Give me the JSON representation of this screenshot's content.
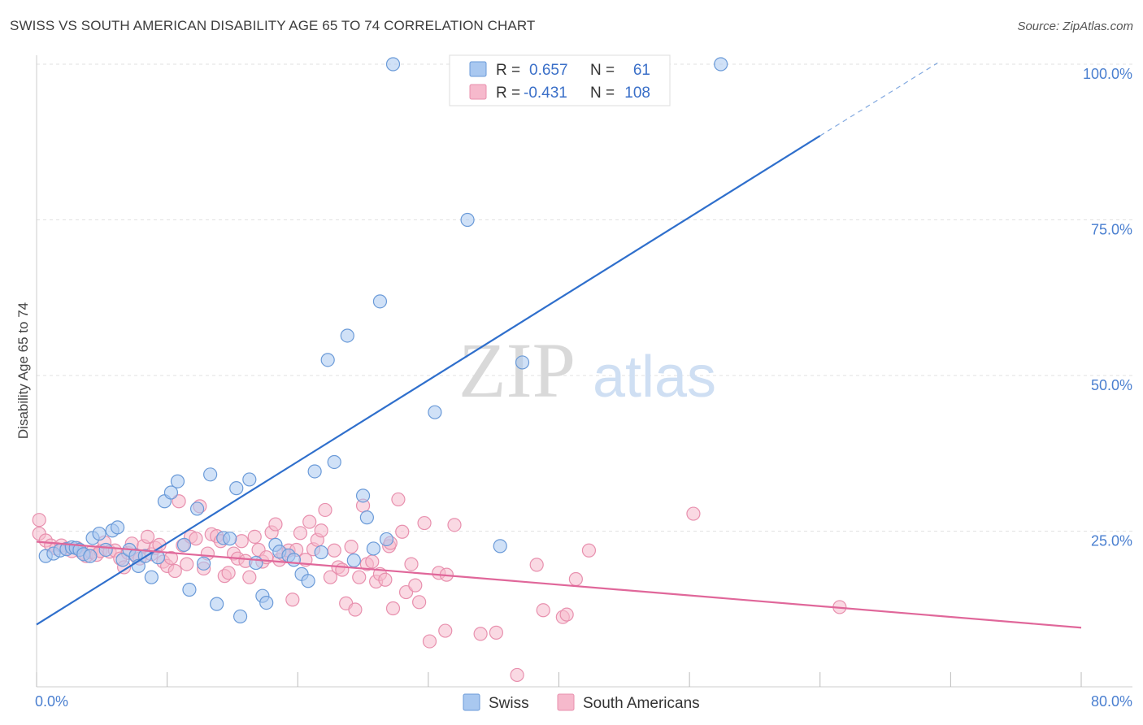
{
  "title": "SWISS VS SOUTH AMERICAN DISABILITY AGE 65 TO 74 CORRELATION CHART",
  "source": "Source: ZipAtlas.com",
  "colors": {
    "swiss_fill": "#a9c8f0",
    "swiss_stroke": "#6a9ad8",
    "swiss_line": "#2f6fcc",
    "sa_fill": "#f6b9cc",
    "sa_stroke": "#e890ae",
    "sa_line": "#e0679a",
    "axis_label": "#4a7fd0",
    "grid": "#e2e2e2"
  },
  "legend": {
    "rows": [
      {
        "r_label": "R =",
        "r_value": "0.657",
        "n_label": "N =",
        "n_value": "61",
        "series": "swiss"
      },
      {
        "r_label": "R =",
        "r_value": "-0.431",
        "n_label": "N =",
        "n_value": "108",
        "series": "sa"
      }
    ]
  },
  "bottom_legend": [
    "Swiss",
    "South Americans"
  ],
  "watermark": {
    "zip": "ZIP",
    "atlas": "atlas"
  },
  "chart_data": {
    "type": "scatter",
    "title": "SWISS VS SOUTH AMERICAN DISABILITY AGE 65 TO 74 CORRELATION CHART",
    "xlabel": "",
    "ylabel": "Disability Age 65 to 74",
    "xlim": [
      0,
      80
    ],
    "ylim": [
      0,
      100
    ],
    "x_tick_labels": [
      "0.0%",
      "80.0%"
    ],
    "y_ticks": [
      25,
      50,
      75,
      100
    ],
    "y_tick_labels": [
      "25.0%",
      "50.0%",
      "75.0%",
      "100.0%"
    ],
    "grid": true,
    "legend_position": "top-center",
    "series": [
      {
        "name": "Swiss",
        "key": "swiss",
        "trend": {
          "x0": 0,
          "y0": 10.0,
          "x1": 60,
          "y1": 88.5,
          "dash_to_x": 69,
          "dash_to_y": 100.2
        },
        "points": [
          [
            0.7,
            21.0
          ],
          [
            1.3,
            21.4
          ],
          [
            1.8,
            21.9
          ],
          [
            2.3,
            22.1
          ],
          [
            2.7,
            22.4
          ],
          [
            3.0,
            22.3
          ],
          [
            3.3,
            22.0
          ],
          [
            3.6,
            21.3
          ],
          [
            4.1,
            21.0
          ],
          [
            4.3,
            23.9
          ],
          [
            4.8,
            24.6
          ],
          [
            5.3,
            22.0
          ],
          [
            5.8,
            25.1
          ],
          [
            6.2,
            25.6
          ],
          [
            6.6,
            20.4
          ],
          [
            7.1,
            22.0
          ],
          [
            7.6,
            21.1
          ],
          [
            7.8,
            19.4
          ],
          [
            8.3,
            21.0
          ],
          [
            8.8,
            17.6
          ],
          [
            9.3,
            20.8
          ],
          [
            9.8,
            29.8
          ],
          [
            10.3,
            31.2
          ],
          [
            10.8,
            33.0
          ],
          [
            11.3,
            22.8
          ],
          [
            11.7,
            15.6
          ],
          [
            12.3,
            28.6
          ],
          [
            12.8,
            19.8
          ],
          [
            13.3,
            34.1
          ],
          [
            13.8,
            13.3
          ],
          [
            14.3,
            23.9
          ],
          [
            14.8,
            23.8
          ],
          [
            15.3,
            31.9
          ],
          [
            15.6,
            11.3
          ],
          [
            16.3,
            33.3
          ],
          [
            16.8,
            19.9
          ],
          [
            17.3,
            14.6
          ],
          [
            17.6,
            13.5
          ],
          [
            18.3,
            22.8
          ],
          [
            18.6,
            21.7
          ],
          [
            19.3,
            21.1
          ],
          [
            19.7,
            20.4
          ],
          [
            20.3,
            18.1
          ],
          [
            20.8,
            17.0
          ],
          [
            21.3,
            34.6
          ],
          [
            21.8,
            21.6
          ],
          [
            22.3,
            52.5
          ],
          [
            22.8,
            36.1
          ],
          [
            23.8,
            56.4
          ],
          [
            24.3,
            20.3
          ],
          [
            25.0,
            30.7
          ],
          [
            25.3,
            27.2
          ],
          [
            25.8,
            22.2
          ],
          [
            26.3,
            61.9
          ],
          [
            26.8,
            23.7
          ],
          [
            27.3,
            100.0
          ],
          [
            30.5,
            44.1
          ],
          [
            33.0,
            75.0
          ],
          [
            35.5,
            22.6
          ],
          [
            37.2,
            52.1
          ],
          [
            52.4,
            100.0
          ]
        ]
      },
      {
        "name": "South Americans",
        "key": "sa",
        "trend": {
          "x0": 0,
          "y0": 23.3,
          "x1": 80,
          "y1": 9.5
        },
        "points": [
          [
            0.2,
            26.8
          ],
          [
            0.2,
            24.6
          ],
          [
            0.7,
            23.5
          ],
          [
            1.1,
            22.7
          ],
          [
            1.5,
            22.2
          ],
          [
            1.9,
            22.7
          ],
          [
            2.3,
            22.2
          ],
          [
            2.7,
            21.8
          ],
          [
            3.1,
            22.3
          ],
          [
            3.5,
            21.5
          ],
          [
            3.8,
            21.0
          ],
          [
            4.2,
            21.6
          ],
          [
            4.6,
            21.2
          ],
          [
            4.9,
            21.8
          ],
          [
            5.2,
            23.2
          ],
          [
            5.6,
            21.7
          ],
          [
            6.0,
            21.9
          ],
          [
            6.4,
            20.6
          ],
          [
            6.7,
            19.2
          ],
          [
            7.0,
            21.5
          ],
          [
            7.3,
            23.0
          ],
          [
            7.6,
            21.0
          ],
          [
            7.9,
            20.6
          ],
          [
            8.2,
            22.6
          ],
          [
            8.5,
            24.1
          ],
          [
            8.8,
            21.3
          ],
          [
            9.1,
            22.3
          ],
          [
            9.4,
            22.8
          ],
          [
            9.7,
            20.1
          ],
          [
            10.0,
            19.4
          ],
          [
            10.3,
            20.7
          ],
          [
            10.6,
            18.6
          ],
          [
            10.9,
            29.8
          ],
          [
            11.2,
            22.7
          ],
          [
            11.5,
            19.7
          ],
          [
            11.8,
            24.1
          ],
          [
            12.2,
            23.8
          ],
          [
            12.5,
            29.0
          ],
          [
            12.8,
            19.0
          ],
          [
            13.1,
            21.4
          ],
          [
            13.4,
            24.5
          ],
          [
            13.8,
            24.2
          ],
          [
            14.1,
            23.4
          ],
          [
            14.4,
            17.8
          ],
          [
            14.7,
            18.3
          ],
          [
            15.1,
            21.4
          ],
          [
            15.4,
            20.6
          ],
          [
            15.7,
            23.4
          ],
          [
            16.0,
            20.2
          ],
          [
            16.3,
            17.6
          ],
          [
            16.7,
            24.1
          ],
          [
            17.0,
            22.0
          ],
          [
            17.3,
            20.1
          ],
          [
            17.6,
            20.8
          ],
          [
            18.0,
            24.8
          ],
          [
            18.3,
            26.1
          ],
          [
            18.6,
            20.4
          ],
          [
            18.9,
            21.3
          ],
          [
            19.3,
            21.9
          ],
          [
            19.6,
            14.0
          ],
          [
            19.9,
            22.0
          ],
          [
            20.2,
            24.7
          ],
          [
            20.6,
            20.4
          ],
          [
            20.9,
            26.5
          ],
          [
            21.2,
            22.1
          ],
          [
            21.5,
            23.6
          ],
          [
            21.8,
            25.1
          ],
          [
            22.1,
            28.4
          ],
          [
            22.5,
            17.6
          ],
          [
            22.8,
            21.9
          ],
          [
            23.1,
            19.2
          ],
          [
            23.4,
            18.8
          ],
          [
            23.7,
            13.4
          ],
          [
            24.1,
            22.5
          ],
          [
            24.4,
            12.4
          ],
          [
            24.7,
            17.6
          ],
          [
            25.0,
            29.1
          ],
          [
            25.3,
            19.7
          ],
          [
            25.7,
            20.1
          ],
          [
            26.0,
            16.9
          ],
          [
            26.3,
            18.1
          ],
          [
            26.7,
            17.2
          ],
          [
            27.0,
            22.6
          ],
          [
            27.3,
            12.6
          ],
          [
            27.7,
            30.1
          ],
          [
            28.0,
            24.9
          ],
          [
            28.3,
            15.2
          ],
          [
            28.7,
            19.7
          ],
          [
            29.0,
            16.3
          ],
          [
            29.3,
            13.6
          ],
          [
            29.7,
            26.3
          ],
          [
            30.1,
            7.3
          ],
          [
            30.8,
            18.3
          ],
          [
            31.3,
            9.0
          ],
          [
            32.0,
            26.0
          ],
          [
            31.4,
            18.0
          ],
          [
            34.0,
            8.5
          ],
          [
            35.2,
            8.7
          ],
          [
            36.8,
            1.9
          ],
          [
            38.3,
            19.6
          ],
          [
            38.8,
            12.3
          ],
          [
            40.3,
            11.2
          ],
          [
            40.6,
            11.6
          ],
          [
            41.3,
            17.3
          ],
          [
            42.3,
            21.9
          ],
          [
            50.3,
            27.8
          ],
          [
            61.5,
            12.8
          ],
          [
            27.1,
            23.1
          ]
        ]
      }
    ]
  }
}
